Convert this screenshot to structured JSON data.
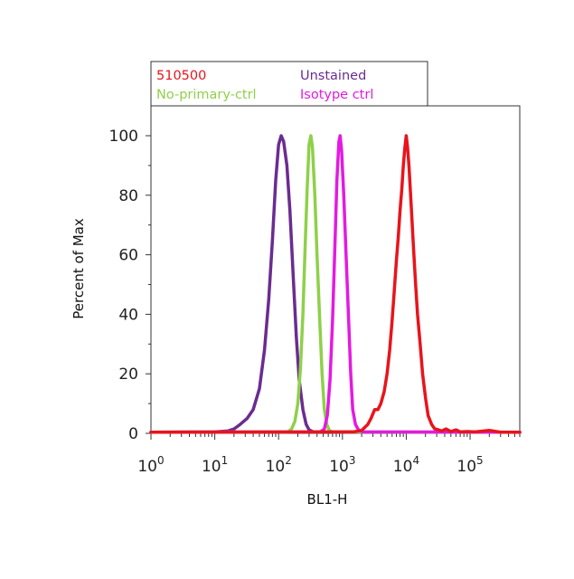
{
  "colors": {
    "s510500": "#e8141c",
    "unstained": "#6a2c91",
    "no_primary": "#8fd04a",
    "isotype": "#e41ae0",
    "axis": "#333333"
  },
  "legend": [
    {
      "label": "510500",
      "color_key": "s510500"
    },
    {
      "label": "Unstained",
      "color_key": "unstained"
    },
    {
      "label": "No-primary-ctrl",
      "color_key": "no_primary"
    },
    {
      "label": "Isotype ctrl",
      "color_key": "isotype"
    }
  ],
  "chart_data": {
    "type": "line",
    "title": "",
    "xlabel": "BL1-H",
    "ylabel": "Percent of Max",
    "x_scale": "log",
    "xlim": [
      1,
      600000
    ],
    "ylim": [
      0,
      110
    ],
    "x_ticks": [
      {
        "value": 1,
        "base": "10",
        "exp": "0"
      },
      {
        "value": 10,
        "base": "10",
        "exp": "1"
      },
      {
        "value": 100,
        "base": "10",
        "exp": "2"
      },
      {
        "value": 1000,
        "base": "10",
        "exp": "3"
      },
      {
        "value": 10000,
        "base": "10",
        "exp": "4"
      },
      {
        "value": 100000,
        "base": "10",
        "exp": "5"
      }
    ],
    "y_ticks": [
      0,
      20,
      40,
      60,
      80,
      100
    ],
    "grid": false,
    "legend_position": "top",
    "series": [
      {
        "name": "Unstained",
        "color_key": "unstained",
        "points": [
          [
            1,
            0.4
          ],
          [
            10,
            0.5
          ],
          [
            16,
            0.8
          ],
          [
            20,
            1.5
          ],
          [
            25,
            3
          ],
          [
            32,
            5
          ],
          [
            40,
            8
          ],
          [
            50,
            15
          ],
          [
            60,
            28
          ],
          [
            70,
            45
          ],
          [
            80,
            65
          ],
          [
            90,
            85
          ],
          [
            100,
            97
          ],
          [
            110,
            100
          ],
          [
            120,
            98
          ],
          [
            135,
            90
          ],
          [
            150,
            75
          ],
          [
            170,
            52
          ],
          [
            190,
            32
          ],
          [
            210,
            18
          ],
          [
            240,
            8
          ],
          [
            270,
            3
          ],
          [
            300,
            1.2
          ],
          [
            350,
            0.5
          ],
          [
            1000,
            0.4
          ],
          [
            600000,
            0.4
          ]
        ]
      },
      {
        "name": "No-primary-ctrl",
        "color_key": "no_primary",
        "points": [
          [
            1,
            0.4
          ],
          [
            140,
            0.5
          ],
          [
            160,
            1.5
          ],
          [
            180,
            4
          ],
          [
            200,
            10
          ],
          [
            220,
            22
          ],
          [
            240,
            40
          ],
          [
            260,
            62
          ],
          [
            280,
            82
          ],
          [
            300,
            97
          ],
          [
            320,
            100
          ],
          [
            340,
            96
          ],
          [
            370,
            80
          ],
          [
            400,
            60
          ],
          [
            440,
            38
          ],
          [
            480,
            20
          ],
          [
            520,
            8
          ],
          [
            570,
            3
          ],
          [
            620,
            1
          ],
          [
            700,
            0.5
          ],
          [
            600000,
            0.4
          ]
        ]
      },
      {
        "name": "Isotype ctrl",
        "color_key": "isotype",
        "points": [
          [
            1,
            0.4
          ],
          [
            450,
            0.5
          ],
          [
            520,
            1.5
          ],
          [
            580,
            6
          ],
          [
            640,
            18
          ],
          [
            700,
            38
          ],
          [
            760,
            62
          ],
          [
            820,
            85
          ],
          [
            880,
            98
          ],
          [
            920,
            100
          ],
          [
            970,
            95
          ],
          [
            1050,
            80
          ],
          [
            1150,
            58
          ],
          [
            1250,
            38
          ],
          [
            1350,
            20
          ],
          [
            1450,
            8
          ],
          [
            1600,
            3
          ],
          [
            1800,
            1
          ],
          [
            2100,
            0.5
          ],
          [
            600000,
            0.4
          ]
        ]
      },
      {
        "name": "510500",
        "color_key": "s510500",
        "points": [
          [
            1,
            0.4
          ],
          [
            1500,
            0.5
          ],
          [
            2000,
            1
          ],
          [
            2500,
            3
          ],
          [
            2800,
            5
          ],
          [
            3200,
            8
          ],
          [
            3600,
            8
          ],
          [
            4000,
            10
          ],
          [
            4500,
            14
          ],
          [
            5000,
            20
          ],
          [
            5500,
            28
          ],
          [
            6000,
            38
          ],
          [
            6500,
            48
          ],
          [
            7000,
            58
          ],
          [
            7500,
            66
          ],
          [
            8000,
            75
          ],
          [
            8500,
            82
          ],
          [
            9000,
            90
          ],
          [
            9500,
            96
          ],
          [
            10000,
            100
          ],
          [
            10500,
            96
          ],
          [
            11000,
            90
          ],
          [
            12000,
            76
          ],
          [
            13000,
            62
          ],
          [
            14000,
            50
          ],
          [
            15000,
            40
          ],
          [
            16500,
            30
          ],
          [
            18000,
            20
          ],
          [
            20000,
            12
          ],
          [
            22000,
            6
          ],
          [
            25000,
            3
          ],
          [
            28000,
            1.5
          ],
          [
            32000,
            1.2
          ],
          [
            36000,
            0.8
          ],
          [
            42000,
            1.5
          ],
          [
            50000,
            0.6
          ],
          [
            60000,
            1.2
          ],
          [
            70000,
            0.5
          ],
          [
            90000,
            0.6
          ],
          [
            120000,
            0.5
          ],
          [
            200000,
            1
          ],
          [
            300000,
            0.4
          ],
          [
            600000,
            0.4
          ]
        ]
      }
    ]
  }
}
